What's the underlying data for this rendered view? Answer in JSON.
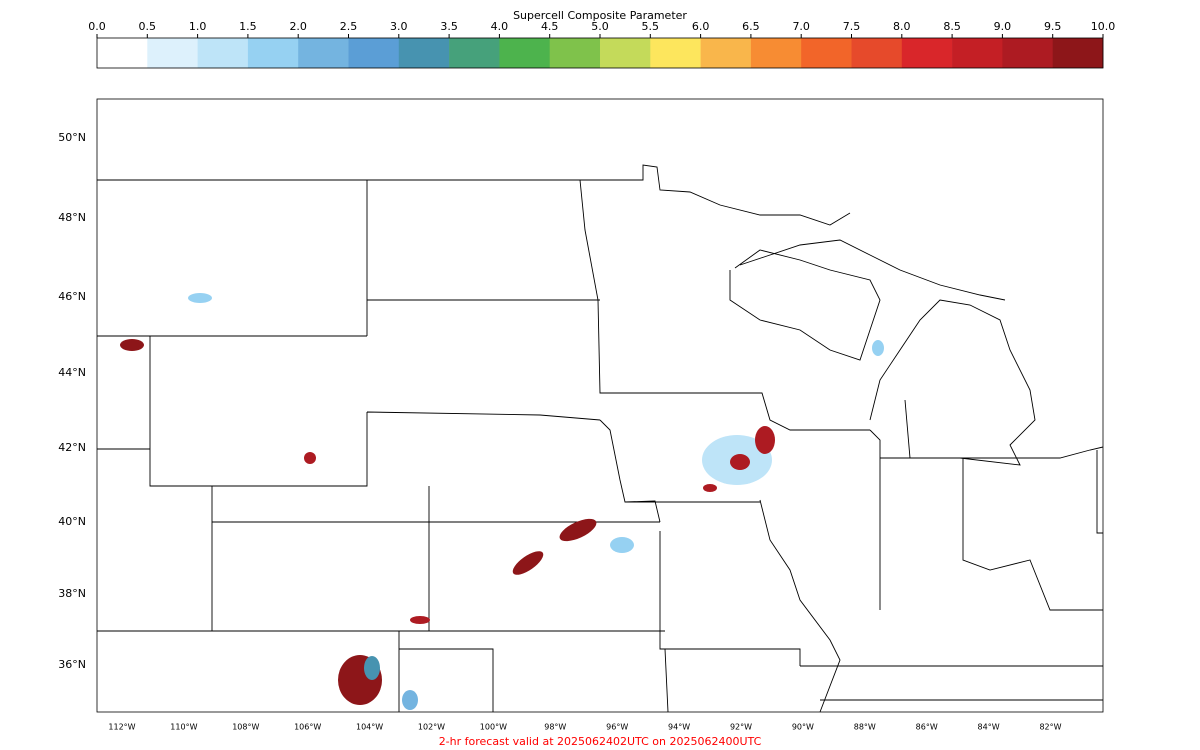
{
  "colorbar": {
    "title": "Supercell Composite Parameter",
    "lim": [
      0,
      10
    ],
    "ticks": [
      {
        "value": 0,
        "label": "0.0"
      },
      0.5,
      {
        "value": 1,
        "label": "1.0"
      },
      1.5,
      {
        "value": 2,
        "label": "2.0"
      },
      2.5,
      {
        "value": 3,
        "label": "3.0"
      },
      3.5,
      {
        "value": 4,
        "label": "4.0"
      },
      4.5,
      {
        "value": 5,
        "label": "5.0"
      },
      5.5,
      {
        "value": 6,
        "label": "6.0"
      },
      6.5,
      {
        "value": 7,
        "label": "7.0"
      },
      7.5,
      {
        "value": 8,
        "label": "8.0"
      },
      8.5,
      {
        "value": 9,
        "label": "9.0"
      },
      9.5,
      {
        "value": 10,
        "label": "10.0"
      }
    ],
    "colors": [
      "#ffffff",
      "#ddf1fc",
      "#bee4f8",
      "#96d1f2",
      "#74b4e0",
      "#5b9ed6",
      "#4793b0",
      "#46a17b",
      "#4db34d",
      "#7fc24b",
      "#c4da5a",
      "#fde65d",
      "#f9b64b",
      "#f78c33",
      "#f26529",
      "#e64a2b",
      "#d9262a",
      "#c41f25",
      "#ad1b22",
      "#8d1619"
    ]
  },
  "map": {
    "lat_labels": [
      "50°N",
      "48°N",
      "46°N",
      "44°N",
      "42°N",
      "40°N",
      "38°N",
      "36°N"
    ],
    "lon_labels": [
      "112°W",
      "110°W",
      "108°W",
      "106°W",
      "104°W",
      "102°W",
      "100°W",
      "98°W",
      "96°W",
      "94°W",
      "92°W",
      "90°W",
      "88°W",
      "86°W",
      "84°W",
      "82°W"
    ]
  },
  "footer": "2-hr forecast valid at 2025062402UTC on 2025062400UTC"
}
